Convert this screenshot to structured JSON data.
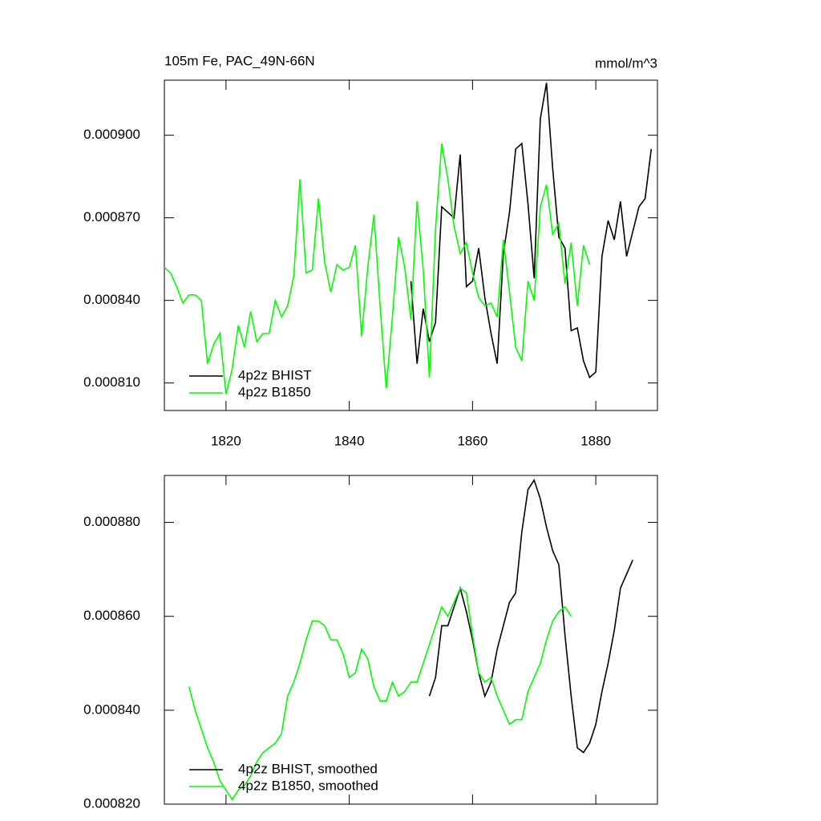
{
  "chart_data": [
    {
      "type": "line",
      "title": "105m Fe, PAC_49N-66N",
      "units": "mmol/m^3",
      "legend": "lower left",
      "xlim": [
        1810,
        1890
      ],
      "xticks": [
        1820,
        1840,
        1860,
        1880
      ],
      "ylim": [
        0.0008,
        0.00092
      ],
      "yticks": [
        {
          "value": 0.00081,
          "label": "0.000810"
        },
        {
          "value": 0.00084,
          "label": "0.000840"
        },
        {
          "value": 0.00087,
          "label": "0.000870"
        },
        {
          "value": 0.0009,
          "label": "0.000900"
        }
      ],
      "series": [
        {
          "name": "4p2z BHIST",
          "color": "#000000",
          "x": [
            1850,
            1851,
            1852,
            1853,
            1854,
            1855,
            1856,
            1857,
            1858,
            1859,
            1860,
            1861,
            1862,
            1863,
            1864,
            1865,
            1866,
            1867,
            1868,
            1869,
            1870,
            1871,
            1872,
            1873,
            1874,
            1875,
            1876,
            1877,
            1878,
            1879,
            1880,
            1881,
            1882,
            1883,
            1884,
            1885,
            1886,
            1887,
            1888,
            1889
          ],
          "values": [
            0.000847,
            0.000817,
            0.000837,
            0.000825,
            0.000832,
            0.000874,
            0.000872,
            0.00087,
            0.000893,
            0.000845,
            0.000847,
            0.000859,
            0.000841,
            0.000828,
            0.000817,
            0.000857,
            0.000872,
            0.000895,
            0.000897,
            0.000875,
            0.000848,
            0.000906,
            0.000919,
            0.000888,
            0.000863,
            0.000859,
            0.000829,
            0.00083,
            0.000818,
            0.000812,
            0.000814,
            0.000856,
            0.000869,
            0.000862,
            0.000876,
            0.000856,
            0.000865,
            0.000874,
            0.000877,
            0.000895
          ]
        },
        {
          "name": "4p2z B1850",
          "color": "#00ff00",
          "x": [
            1810,
            1811,
            1812,
            1813,
            1814,
            1815,
            1816,
            1817,
            1818,
            1819,
            1820,
            1821,
            1822,
            1823,
            1824,
            1825,
            1826,
            1827,
            1828,
            1829,
            1830,
            1831,
            1832,
            1833,
            1834,
            1835,
            1836,
            1837,
            1838,
            1839,
            1840,
            1841,
            1842,
            1843,
            1844,
            1845,
            1846,
            1847,
            1848,
            1849,
            1850,
            1851,
            1852,
            1853,
            1854,
            1855,
            1856,
            1857,
            1858,
            1859,
            1860,
            1861,
            1862,
            1863,
            1864,
            1865,
            1866,
            1867,
            1868,
            1869,
            1870,
            1871,
            1872,
            1873,
            1874,
            1875,
            1876,
            1877,
            1878,
            1879
          ],
          "values": [
            0.000852,
            0.00085,
            0.000845,
            0.000839,
            0.000842,
            0.000842,
            0.00084,
            0.000817,
            0.000824,
            0.000828,
            0.000806,
            0.000815,
            0.000831,
            0.000823,
            0.000836,
            0.000825,
            0.000828,
            0.000828,
            0.00084,
            0.000834,
            0.000838,
            0.000849,
            0.000884,
            0.00085,
            0.000851,
            0.000877,
            0.000854,
            0.000843,
            0.000853,
            0.000851,
            0.000852,
            0.00086,
            0.000827,
            0.000852,
            0.000871,
            0.000838,
            0.000808,
            0.000834,
            0.000863,
            0.000852,
            0.000833,
            0.000876,
            0.000851,
            0.000812,
            0.000866,
            0.000897,
            0.000884,
            0.000867,
            0.000857,
            0.000861,
            0.00085,
            0.000841,
            0.000838,
            0.000839,
            0.000834,
            0.000862,
            0.000843,
            0.000823,
            0.000818,
            0.000847,
            0.00084,
            0.000874,
            0.000882,
            0.000864,
            0.000868,
            0.000846,
            0.000861,
            0.000838,
            0.00086,
            0.000853
          ]
        }
      ]
    },
    {
      "type": "line",
      "legend": "lower left",
      "xlim": [
        1810,
        1890
      ],
      "xticks": [
        1820,
        1840,
        1860,
        1880
      ],
      "ylim": [
        0.00082,
        0.00089
      ],
      "yticks": [
        {
          "value": 0.00082,
          "label": "0.000820"
        },
        {
          "value": 0.00084,
          "label": "0.000840"
        },
        {
          "value": 0.00086,
          "label": "0.000860"
        },
        {
          "value": 0.00088,
          "label": "0.000880"
        }
      ],
      "series": [
        {
          "name": "4p2z BHIST, smoothed",
          "color": "#000000",
          "x": [
            1853,
            1854,
            1855,
            1856,
            1857,
            1858,
            1859,
            1860,
            1861,
            1862,
            1863,
            1864,
            1865,
            1866,
            1867,
            1868,
            1869,
            1870,
            1871,
            1872,
            1873,
            1874,
            1875,
            1876,
            1877,
            1878,
            1879,
            1880,
            1881,
            1882,
            1883,
            1884,
            1885,
            1886
          ],
          "values": [
            0.000843,
            0.000847,
            0.000858,
            0.000858,
            0.000862,
            0.000866,
            0.000861,
            0.000855,
            0.000848,
            0.000843,
            0.000846,
            0.000853,
            0.000858,
            0.000863,
            0.000865,
            0.000878,
            0.000887,
            0.000889,
            0.000885,
            0.000879,
            0.000874,
            0.000871,
            0.000856,
            0.000843,
            0.000832,
            0.000831,
            0.000833,
            0.000837,
            0.000844,
            0.00085,
            0.000857,
            0.000866,
            0.000869,
            0.000872
          ]
        },
        {
          "name": "4p2z B1850, smoothed",
          "color": "#00ff00",
          "x": [
            1814,
            1815,
            1816,
            1817,
            1818,
            1819,
            1820,
            1821,
            1822,
            1823,
            1824,
            1825,
            1826,
            1827,
            1828,
            1829,
            1830,
            1831,
            1832,
            1833,
            1834,
            1835,
            1836,
            1837,
            1838,
            1839,
            1840,
            1841,
            1842,
            1843,
            1844,
            1845,
            1846,
            1847,
            1848,
            1849,
            1850,
            1851,
            1852,
            1853,
            1854,
            1855,
            1856,
            1857,
            1858,
            1859,
            1860,
            1861,
            1862,
            1863,
            1864,
            1865,
            1866,
            1867,
            1868,
            1869,
            1870,
            1871,
            1872,
            1873,
            1874,
            1875,
            1876
          ],
          "values": [
            0.000845,
            0.00084,
            0.000836,
            0.000832,
            0.000829,
            0.000825,
            0.000823,
            0.000821,
            0.000823,
            0.000824,
            0.000826,
            0.000829,
            0.000831,
            0.000832,
            0.000833,
            0.000835,
            0.000843,
            0.000846,
            0.00085,
            0.000855,
            0.000859,
            0.000859,
            0.000858,
            0.000855,
            0.000855,
            0.000852,
            0.000847,
            0.000848,
            0.000853,
            0.000851,
            0.000845,
            0.000842,
            0.000842,
            0.000846,
            0.000843,
            0.000844,
            0.000846,
            0.000846,
            0.00085,
            0.000854,
            0.000858,
            0.000862,
            0.00086,
            0.000863,
            0.000866,
            0.000865,
            0.000856,
            0.000848,
            0.000846,
            0.000847,
            0.000843,
            0.00084,
            0.000837,
            0.000838,
            0.000838,
            0.000844,
            0.000847,
            0.00085,
            0.000855,
            0.000859,
            0.000861,
            0.000862,
            0.00086
          ]
        }
      ]
    }
  ]
}
